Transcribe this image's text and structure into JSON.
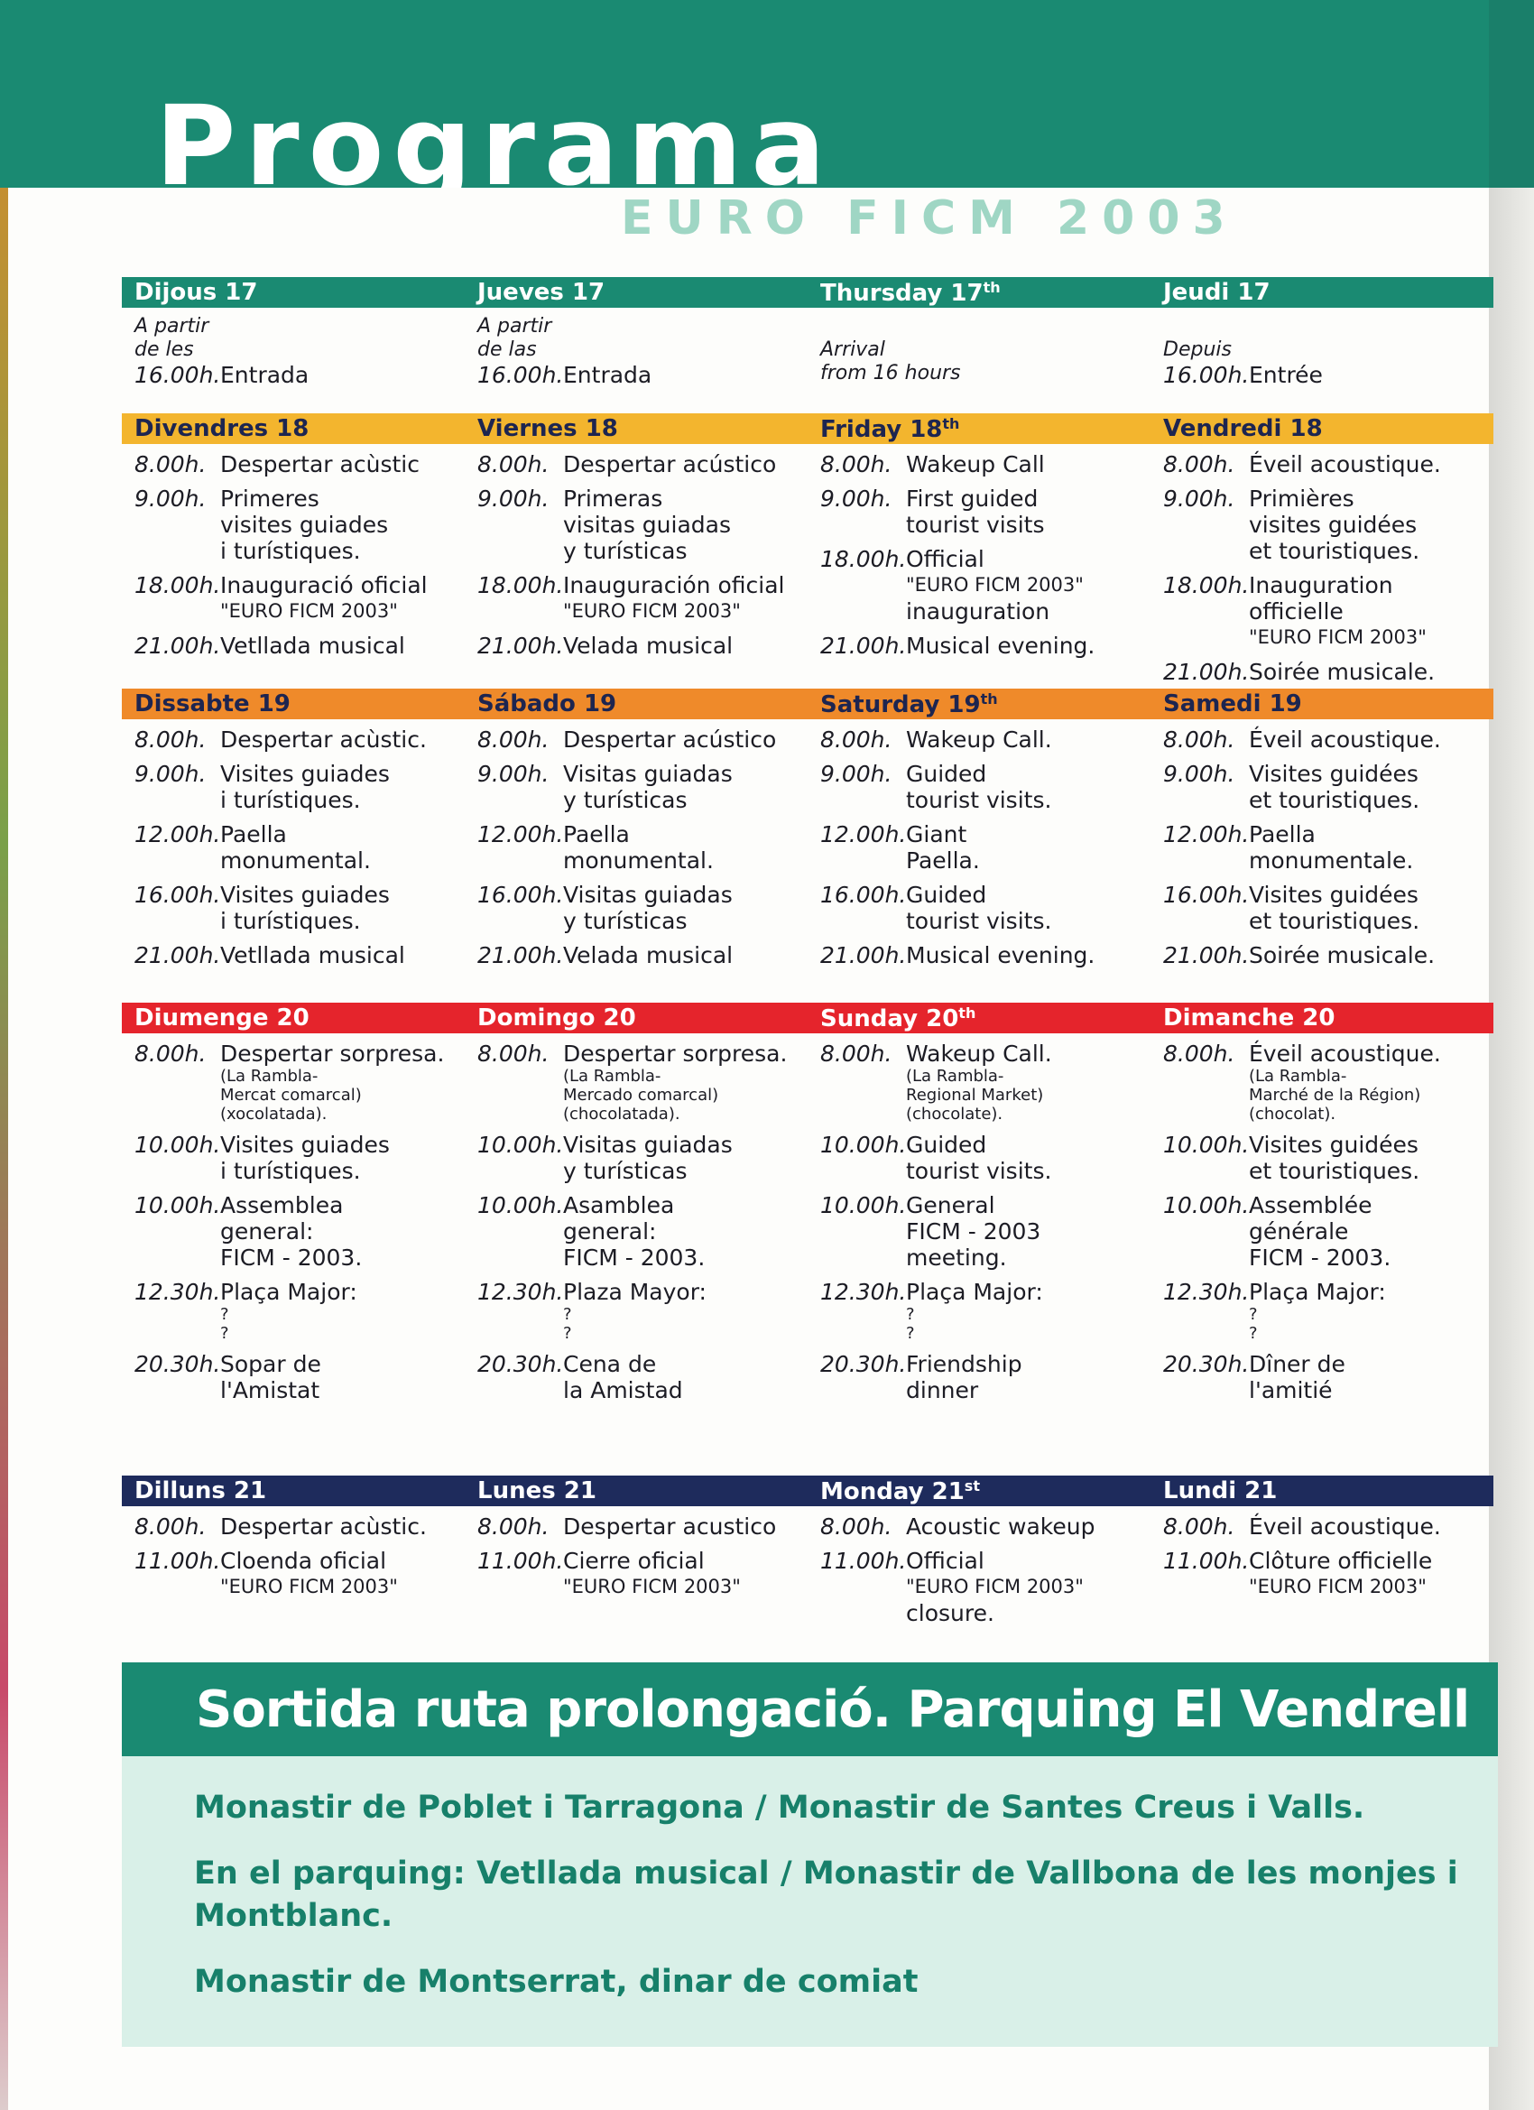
{
  "header": {
    "title": "Programa",
    "subtitle": "EURO FICM 2003"
  },
  "days": [
    {
      "color": "#1a8a72",
      "text_color": "#ffffff",
      "columns": [
        {
          "heading": "Dijous 17",
          "entries": [
            {
              "pre": [
                "A partir",
                "de les"
              ],
              "time": "16.00h.",
              "lines": [
                "Entrada"
              ]
            }
          ]
        },
        {
          "heading": "Jueves 17",
          "entries": [
            {
              "pre": [
                "A partir",
                "de las"
              ],
              "time": "16.00h.",
              "lines": [
                "Entrada"
              ]
            }
          ]
        },
        {
          "heading": "Thursday 17",
          "sup": "th",
          "entries": [
            {
              "pre": [
                "Arrival",
                "from 16 hours"
              ]
            }
          ]
        },
        {
          "heading": "Jeudi 17",
          "entries": [
            {
              "pre": [
                "Depuis"
              ],
              "time": "16.00h.",
              "lines": [
                "Entrée"
              ]
            }
          ]
        }
      ]
    },
    {
      "color": "#f3b52e",
      "text_color": "#1d2550",
      "columns": [
        {
          "heading": "Divendres 18",
          "entries": [
            {
              "time": "8.00h.",
              "lines": [
                "Despertar acùstic"
              ]
            },
            {
              "time": "9.00h.",
              "lines": [
                "Primeres",
                "visites guiades",
                "i turístiques."
              ]
            },
            {
              "time": "18.00h.",
              "lines": [
                "Inauguració oficial",
                "\"EURO FICM 2003\""
              ]
            },
            {
              "time": "21.00h.",
              "lines": [
                "Vetllada musical"
              ]
            }
          ]
        },
        {
          "heading": "Viernes 18",
          "entries": [
            {
              "time": "8.00h.",
              "lines": [
                "Despertar acústico"
              ]
            },
            {
              "time": "9.00h.",
              "lines": [
                "Primeras",
                "visitas guiadas",
                "y turísticas"
              ]
            },
            {
              "time": "18.00h.",
              "lines": [
                "Inauguración oficial",
                "\"EURO FICM 2003\""
              ]
            },
            {
              "time": "21.00h.",
              "lines": [
                "Velada musical"
              ]
            }
          ]
        },
        {
          "heading": "Friday 18",
          "sup": "th",
          "entries": [
            {
              "time": "8.00h.",
              "lines": [
                "Wakeup Call"
              ]
            },
            {
              "time": "9.00h.",
              "lines": [
                "First guided",
                "tourist visits"
              ]
            },
            {
              "time": "18.00h.",
              "lines": [
                "Official",
                "\"EURO FICM 2003\"",
                "inauguration"
              ]
            },
            {
              "time": "21.00h.",
              "lines": [
                "Musical evening."
              ]
            }
          ]
        },
        {
          "heading": "Vendredi 18",
          "entries": [
            {
              "time": "8.00h.",
              "lines": [
                "Éveil acoustique."
              ]
            },
            {
              "time": "9.00h.",
              "lines": [
                "Primières",
                "visites guidées",
                "et touristiques."
              ]
            },
            {
              "time": "18.00h.",
              "lines": [
                "Inauguration officielle",
                "\"EURO FICM 2003\""
              ]
            },
            {
              "time": "21.00h.",
              "lines": [
                "Soirée musicale."
              ]
            }
          ]
        }
      ]
    },
    {
      "color": "#ef8a2a",
      "text_color": "#1d2550",
      "columns": [
        {
          "heading": "Dissabte 19",
          "entries": [
            {
              "time": "8.00h.",
              "lines": [
                "Despertar acùstic."
              ]
            },
            {
              "time": "9.00h.",
              "lines": [
                "Visites guiades",
                "i turístiques."
              ]
            },
            {
              "time": "12.00h.",
              "lines": [
                "Paella",
                "monumental."
              ]
            },
            {
              "time": "16.00h.",
              "lines": [
                "Visites guiades",
                "i turístiques."
              ]
            },
            {
              "time": "21.00h.",
              "lines": [
                "Vetllada musical"
              ]
            }
          ]
        },
        {
          "heading": "Sábado 19",
          "entries": [
            {
              "time": "8.00h.",
              "lines": [
                "Despertar acústico"
              ]
            },
            {
              "time": "9.00h.",
              "lines": [
                "Visitas guiadas",
                "y turísticas"
              ]
            },
            {
              "time": "12.00h.",
              "lines": [
                "Paella",
                "monumental."
              ]
            },
            {
              "time": "16.00h.",
              "lines": [
                "Visitas guiadas",
                "y turísticas"
              ]
            },
            {
              "time": "21.00h.",
              "lines": [
                "Velada musical"
              ]
            }
          ]
        },
        {
          "heading": "Saturday 19",
          "sup": "th",
          "entries": [
            {
              "time": "8.00h.",
              "lines": [
                "Wakeup Call."
              ]
            },
            {
              "time": "9.00h.",
              "lines": [
                "Guided",
                "tourist visits."
              ]
            },
            {
              "time": "12.00h.",
              "lines": [
                "Giant",
                "Paella."
              ]
            },
            {
              "time": "16.00h.",
              "lines": [
                "Guided",
                "tourist visits."
              ]
            },
            {
              "time": "21.00h.",
              "lines": [
                "Musical evening."
              ]
            }
          ]
        },
        {
          "heading": "Samedi 19",
          "entries": [
            {
              "time": "8.00h.",
              "lines": [
                "Éveil acoustique."
              ]
            },
            {
              "time": "9.00h.",
              "lines": [
                "Visites guidées",
                "et touristiques."
              ]
            },
            {
              "time": "12.00h.",
              "lines": [
                "Paella",
                "monumentale."
              ]
            },
            {
              "time": "16.00h.",
              "lines": [
                "Visites guidées",
                "et touristiques."
              ]
            },
            {
              "time": "21.00h.",
              "lines": [
                "Soirée musicale."
              ]
            }
          ]
        }
      ]
    },
    {
      "color": "#e5242c",
      "text_color": "#ffffff",
      "columns": [
        {
          "heading": "Diumenge 20",
          "entries": [
            {
              "time": "8.00h.",
              "lines": [
                "Despertar sorpresa."
              ],
              "small": [
                "(La Rambla-",
                "Mercat comarcal)",
                "(xocolatada)."
              ]
            },
            {
              "time": "10.00h.",
              "lines": [
                "Visites guiades",
                "i turístiques."
              ]
            },
            {
              "time": "10.00h.",
              "lines": [
                "Assemblea",
                "general:",
                "FICM - 2003."
              ]
            },
            {
              "time": "12.30h.",
              "lines": [
                "Plaça Major:"
              ],
              "small": [
                "?",
                "?"
              ]
            },
            {
              "time": "20.30h.",
              "lines": [
                "Sopar de",
                "l'Amistat"
              ]
            }
          ]
        },
        {
          "heading": "Domingo 20",
          "entries": [
            {
              "time": "8.00h.",
              "lines": [
                "Despertar sorpresa."
              ],
              "small": [
                "(La Rambla-",
                "Mercado comarcal)",
                "(chocolatada)."
              ]
            },
            {
              "time": "10.00h.",
              "lines": [
                "Visitas guiadas",
                "y turísticas"
              ]
            },
            {
              "time": "10.00h.",
              "lines": [
                "Asamblea",
                "general:",
                "FICM - 2003."
              ]
            },
            {
              "time": "12.30h.",
              "lines": [
                "Plaza Mayor:"
              ],
              "small": [
                "?",
                "?"
              ]
            },
            {
              "time": "20.30h.",
              "lines": [
                "Cena de",
                "la Amistad"
              ]
            }
          ]
        },
        {
          "heading": "Sunday 20",
          "sup": "th",
          "entries": [
            {
              "time": "8.00h.",
              "lines": [
                "Wakeup Call."
              ],
              "small": [
                "(La Rambla-",
                "Regional Market)",
                "(chocolate)."
              ]
            },
            {
              "time": "10.00h.",
              "lines": [
                "Guided",
                "tourist visits."
              ]
            },
            {
              "time": "10.00h.",
              "lines": [
                "General",
                "FICM - 2003",
                "meeting."
              ]
            },
            {
              "time": "12.30h.",
              "lines": [
                "Plaça Major:"
              ],
              "small": [
                "?",
                "?"
              ]
            },
            {
              "time": "20.30h.",
              "lines": [
                "Friendship",
                "dinner"
              ]
            }
          ]
        },
        {
          "heading": "Dimanche 20",
          "entries": [
            {
              "time": "8.00h.",
              "lines": [
                "Éveil acoustique."
              ],
              "small": [
                "(La Rambla-",
                "Marché de la Région)",
                "(chocolat)."
              ]
            },
            {
              "time": "10.00h.",
              "lines": [
                "Visites guidées",
                "et touristiques."
              ]
            },
            {
              "time": "10.00h.",
              "lines": [
                "Assemblée",
                "générale",
                "FICM - 2003."
              ]
            },
            {
              "time": "12.30h.",
              "lines": [
                "Plaça Major:"
              ],
              "small": [
                "?",
                "?"
              ]
            },
            {
              "time": "20.30h.",
              "lines": [
                "Dîner de",
                "l'amitié"
              ]
            }
          ]
        }
      ]
    },
    {
      "color": "#1e2b5c",
      "text_color": "#ffffff",
      "columns": [
        {
          "heading": "Dilluns 21",
          "entries": [
            {
              "time": "8.00h.",
              "lines": [
                "Despertar acùstic."
              ]
            },
            {
              "time": "11.00h.",
              "lines": [
                "Cloenda oficial",
                "\"EURO FICM 2003\""
              ]
            }
          ]
        },
        {
          "heading": "Lunes 21",
          "entries": [
            {
              "time": "8.00h.",
              "lines": [
                "Despertar acustico"
              ]
            },
            {
              "time": "11.00h.",
              "lines": [
                "Cierre oficial",
                "\"EURO FICM 2003\""
              ]
            }
          ]
        },
        {
          "heading": "Monday 21",
          "sup": "st",
          "entries": [
            {
              "time": "8.00h.",
              "lines": [
                "Acoustic wakeup"
              ]
            },
            {
              "time": "11.00h.",
              "lines": [
                "Official",
                "\"EURO FICM 2003\"",
                "closure."
              ]
            }
          ]
        },
        {
          "heading": "Lundi 21",
          "entries": [
            {
              "time": "8.00h.",
              "lines": [
                "Éveil acoustique."
              ]
            },
            {
              "time": "11.00h.",
              "lines": [
                "Clôture officielle",
                "\"EURO FICM 2003\""
              ]
            }
          ]
        }
      ]
    }
  ],
  "route": {
    "title": "Sortida ruta prolongació. Parquing El Vendrell",
    "paragraphs": [
      "Monastir de Poblet i Tarragona / Monastir de Santes Creus i Valls.",
      "En el parquing: Vetllada musical / Monastir de Vallbona de les monjes i Montblanc.",
      "Monastir de Montserrat, dinar de comiat"
    ]
  }
}
